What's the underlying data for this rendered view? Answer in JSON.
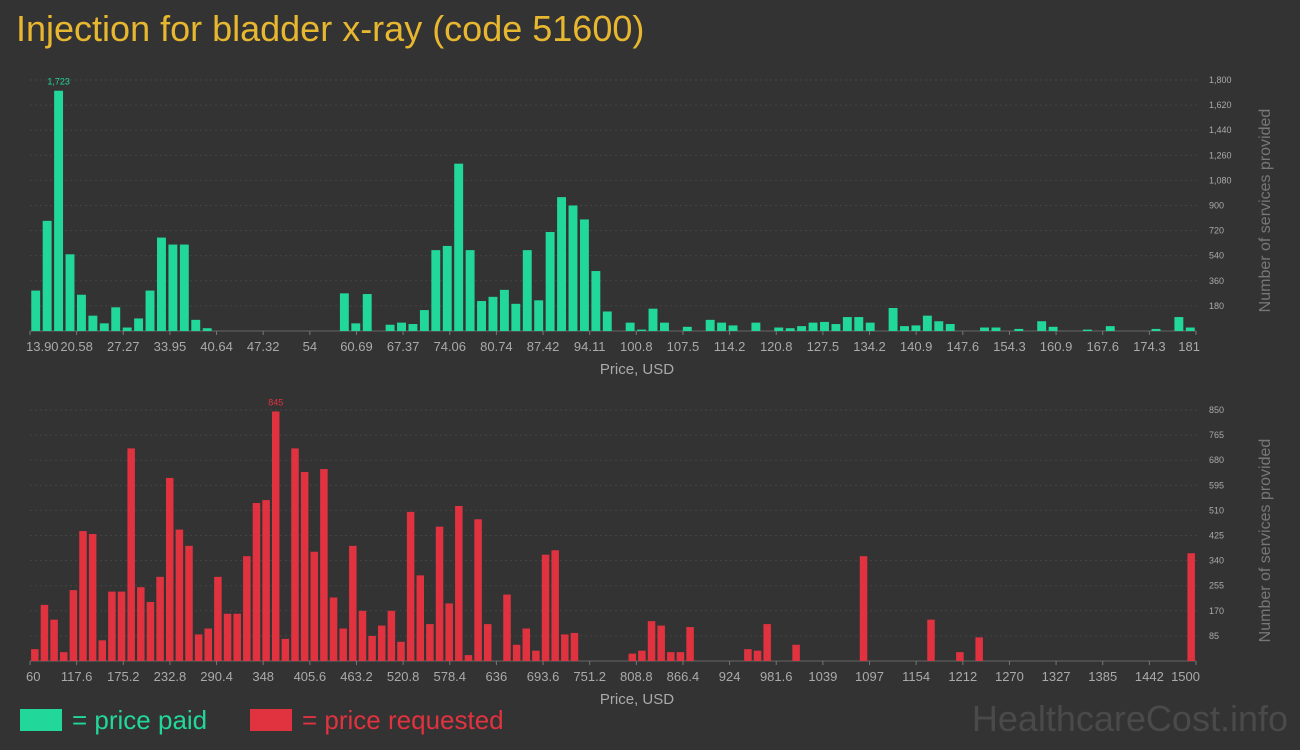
{
  "title": "Injection for bladder x-ray (code 51600)",
  "colors": {
    "paid": "#22d79a",
    "requested": "#e0323f",
    "title": "#e8b730",
    "background": "#333333"
  },
  "legend": {
    "paid": "= price paid",
    "requested": "= price requested"
  },
  "watermark": "HealthcareCost.info",
  "chart_data": [
    {
      "type": "bar",
      "series": [
        {
          "name": "price paid",
          "color": "#22d79a"
        }
      ],
      "xlabel": "Price, USD",
      "ylabel": "Number of services provided",
      "ylim": [
        0,
        1800
      ],
      "grid": true,
      "y_ticks": [
        "180",
        "360",
        "540",
        "720",
        "900",
        "1,080",
        "1,260",
        "1,440",
        "1,620",
        "1,800"
      ],
      "x_ticks": [
        "13.90",
        "20.58",
        "27.27",
        "33.95",
        "40.64",
        "47.32",
        "54",
        "60.69",
        "67.37",
        "74.06",
        "80.74",
        "87.42",
        "94.11",
        "100.8",
        "107.5",
        "114.2",
        "120.8",
        "127.5",
        "134.2",
        "140.9",
        "147.6",
        "154.3",
        "160.9",
        "167.6",
        "174.3",
        "181"
      ],
      "peak_label": "1,723",
      "values": [
        290,
        790,
        1723,
        550,
        260,
        110,
        55,
        170,
        25,
        90,
        290,
        670,
        620,
        620,
        80,
        20,
        0,
        0,
        0,
        0,
        0,
        0,
        0,
        0,
        0,
        0,
        0,
        270,
        55,
        265,
        0,
        45,
        60,
        50,
        150,
        580,
        610,
        1200,
        580,
        215,
        245,
        295,
        195,
        580,
        220,
        710,
        960,
        900,
        800,
        430,
        140,
        0,
        60,
        10,
        160,
        60,
        0,
        30,
        0,
        80,
        60,
        40,
        0,
        60,
        0,
        25,
        20,
        35,
        60,
        65,
        50,
        100,
        100,
        60,
        0,
        165,
        35,
        40,
        110,
        70,
        50,
        0,
        0,
        25,
        25,
        0,
        15,
        0,
        70,
        30,
        0,
        0,
        10,
        0,
        35,
        0,
        0,
        0,
        15,
        0,
        100,
        25
      ]
    },
    {
      "type": "bar",
      "series": [
        {
          "name": "price requested",
          "color": "#e0323f"
        }
      ],
      "xlabel": "Price, USD",
      "ylabel": "Number of services provided",
      "ylim": [
        0,
        850
      ],
      "grid": true,
      "y_ticks": [
        "85",
        "170",
        "255",
        "340",
        "425",
        "510",
        "595",
        "680",
        "765",
        "850"
      ],
      "x_ticks": [
        "60",
        "117.6",
        "175.2",
        "232.8",
        "290.4",
        "348",
        "405.6",
        "463.2",
        "520.8",
        "578.4",
        "636",
        "693.6",
        "751.2",
        "808.8",
        "866.4",
        "924",
        "981.6",
        "1039",
        "1097",
        "1154",
        "1212",
        "1270",
        "1327",
        "1385",
        "1442",
        "1500"
      ],
      "peak_label": "845",
      "values": [
        40,
        190,
        140,
        30,
        240,
        440,
        430,
        70,
        235,
        235,
        720,
        250,
        200,
        285,
        620,
        445,
        390,
        90,
        110,
        285,
        160,
        160,
        355,
        535,
        545,
        845,
        75,
        720,
        640,
        370,
        650,
        215,
        110,
        390,
        170,
        85,
        120,
        170,
        65,
        505,
        290,
        125,
        455,
        195,
        525,
        20,
        480,
        125,
        0,
        225,
        55,
        110,
        35,
        360,
        375,
        90,
        95,
        0,
        0,
        0,
        0,
        0,
        25,
        35,
        135,
        120,
        30,
        30,
        115,
        0,
        0,
        0,
        0,
        0,
        40,
        35,
        125,
        0,
        0,
        55,
        0,
        0,
        0,
        0,
        0,
        0,
        355,
        0,
        0,
        0,
        0,
        0,
        0,
        140,
        0,
        0,
        30,
        0,
        80,
        0,
        0,
        0,
        0,
        0,
        0,
        0,
        0,
        0,
        0,
        0,
        0,
        0,
        0,
        0,
        0,
        0,
        0,
        0,
        0,
        0,
        365
      ]
    }
  ]
}
